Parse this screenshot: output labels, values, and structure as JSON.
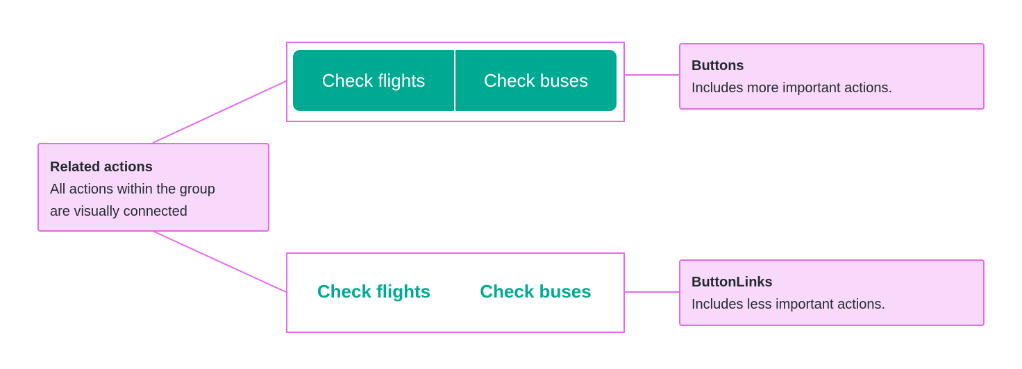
{
  "colors": {
    "accent": "#00a991",
    "annotation_border": "#e36ae8",
    "annotation_fill": "#f8d9fb",
    "text": "#252a31"
  },
  "buttons_example": {
    "items": [
      {
        "label": "Check flights"
      },
      {
        "label": "Check buses"
      }
    ]
  },
  "button_links_example": {
    "items": [
      {
        "label": "Check flights"
      },
      {
        "label": "Check buses"
      }
    ]
  },
  "notes": {
    "related": {
      "title": "Related actions",
      "lines": [
        "All actions within the group",
        "are visually connected"
      ]
    },
    "buttons": {
      "title": "Buttons",
      "text": "Includes more important actions."
    },
    "button_links": {
      "title": "ButtonLinks",
      "text": "Includes less important actions."
    }
  }
}
